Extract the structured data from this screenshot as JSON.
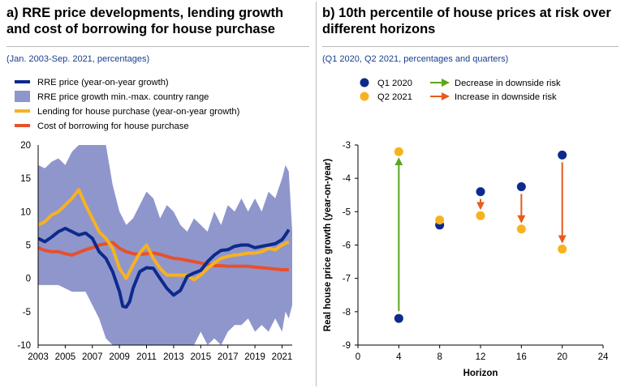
{
  "panel_a": {
    "title_line1": "a) RRE price developments, lending growth",
    "title_line2": "and cost of borrowing for house purchase",
    "subtitle": "(Jan. 2003-Sep. 2021, percentages)"
  },
  "panel_b": {
    "title_line1": "b) 10th percentile of house prices at risk over",
    "title_line2": "different horizons",
    "subtitle": "(Q1 2020, Q2 2021, percentages and quarters)"
  },
  "colors": {
    "navy": "#0d2a8c",
    "range_fill": "#8f96cc",
    "yellow": "#f7b21f",
    "red": "#e8502b",
    "green": "#5aa61e",
    "arrow_red": "#e85b1c",
    "subtitle_blue": "#1a3d8f"
  },
  "chart_data": [
    {
      "type": "line",
      "xlim": [
        2003,
        2021.75
      ],
      "ylim": [
        -10,
        20
      ],
      "xticks": [
        "2003",
        "2005",
        "2007",
        "2009",
        "2011",
        "2013",
        "2015",
        "2017",
        "2019",
        "2021"
      ],
      "yticks": [
        "-10",
        "-5",
        "0",
        "5",
        "10",
        "15",
        "20"
      ],
      "grid": false,
      "legend_position": "top-left",
      "series": [
        {
          "name": "RRE price growth min.-max. country range",
          "kind": "area",
          "x": [
            2003,
            2003.5,
            2004,
            2004.5,
            2005,
            2005.5,
            2006,
            2006.5,
            2007,
            2007.5,
            2008,
            2008.5,
            2009,
            2009.5,
            2010,
            2010.5,
            2011,
            2011.5,
            2012,
            2012.5,
            2013,
            2013.5,
            2014,
            2014.5,
            2015,
            2015.5,
            2016,
            2016.5,
            2017,
            2017.5,
            2018,
            2018.5,
            2019,
            2019.5,
            2020,
            2020.5,
            2021,
            2021.25,
            2021.5,
            2021.75
          ],
          "upper": [
            17,
            16.5,
            17.5,
            18,
            17,
            19,
            20,
            20,
            20,
            20,
            20,
            14,
            10,
            8,
            9,
            11,
            13,
            12,
            9,
            11,
            10,
            8,
            7,
            9,
            8,
            7,
            10,
            8,
            11,
            10,
            12,
            10,
            12,
            10,
            13,
            12,
            15,
            17,
            16,
            7
          ],
          "lower": [
            -1,
            -1,
            -1,
            -1,
            -1.5,
            -2,
            -2,
            -2,
            -4,
            -6,
            -9,
            -10,
            -10,
            -10,
            -10,
            -10,
            -10,
            -10,
            -10,
            -10,
            -10,
            -10,
            -10,
            -10,
            -8,
            -10,
            -9,
            -10,
            -8,
            -7,
            -7,
            -6,
            -8,
            -7,
            -8,
            -6,
            -8,
            -5,
            -6,
            -4
          ]
        },
        {
          "name": "RRE price (year-on-year growth)",
          "x": [
            2003,
            2003.5,
            2004,
            2004.5,
            2005,
            2005.5,
            2006,
            2006.5,
            2007,
            2007.5,
            2008,
            2008.5,
            2009,
            2009.25,
            2009.5,
            2009.75,
            2010,
            2010.5,
            2011,
            2011.5,
            2012,
            2012.5,
            2013,
            2013.5,
            2014,
            2014.5,
            2015,
            2015.5,
            2016,
            2016.5,
            2017,
            2017.5,
            2018,
            2018.5,
            2019,
            2019.5,
            2020,
            2020.5,
            2021,
            2021.25,
            2021.5
          ],
          "values": [
            6,
            5.5,
            6.2,
            7,
            7.5,
            7,
            6.5,
            6.8,
            6,
            4,
            3,
            1,
            -2,
            -4.2,
            -4.3,
            -3.5,
            -1.5,
            1,
            1.6,
            1.5,
            0,
            -1.5,
            -2.5,
            -1.8,
            0.3,
            0.8,
            1.2,
            2.5,
            3.5,
            4.2,
            4.3,
            4.8,
            5,
            5,
            4.6,
            4.8,
            5,
            5.2,
            5.8,
            6.5,
            7.3
          ]
        },
        {
          "name": "Lending for house purchase (year-on-year growth)",
          "x": [
            2003,
            2003.5,
            2004,
            2004.5,
            2005,
            2005.5,
            2006,
            2006.5,
            2007,
            2007.5,
            2008,
            2008.5,
            2009,
            2009.5,
            2010,
            2010.5,
            2011,
            2011.5,
            2012,
            2012.5,
            2013,
            2013.5,
            2014,
            2014.5,
            2015,
            2015.5,
            2016,
            2016.5,
            2017,
            2017.5,
            2018,
            2018.5,
            2019,
            2019.5,
            2020,
            2020.5,
            2021,
            2021.5
          ],
          "values": [
            8,
            8.5,
            9.5,
            10,
            11,
            12,
            13.3,
            11,
            9,
            7,
            6,
            4.5,
            1.5,
            0,
            2,
            3.8,
            5,
            3,
            1.5,
            0.5,
            0.5,
            0.5,
            0.5,
            -0.2,
            0.5,
            1.5,
            2.3,
            3,
            3.3,
            3.5,
            3.6,
            3.8,
            3.8,
            4,
            4.5,
            4.3,
            5,
            5.5
          ]
        },
        {
          "name": "Cost of borrowing for house purchase",
          "x": [
            2003,
            2003.5,
            2004,
            2004.5,
            2005,
            2005.5,
            2006,
            2006.5,
            2007,
            2007.5,
            2008,
            2008.5,
            2009,
            2009.5,
            2010,
            2010.5,
            2011,
            2011.5,
            2012,
            2012.5,
            2013,
            2013.5,
            2014,
            2014.5,
            2015,
            2015.5,
            2016,
            2016.5,
            2017,
            2017.5,
            2018,
            2018.5,
            2019,
            2019.5,
            2020,
            2020.5,
            2021,
            2021.5
          ],
          "values": [
            4.6,
            4.2,
            4,
            4,
            3.7,
            3.5,
            3.9,
            4.3,
            4.6,
            5,
            5.2,
            5.4,
            4.5,
            4,
            3.7,
            3.6,
            3.7,
            3.8,
            3.6,
            3.3,
            3.0,
            2.9,
            2.7,
            2.5,
            2.3,
            2.1,
            1.9,
            1.9,
            1.8,
            1.8,
            1.8,
            1.8,
            1.7,
            1.6,
            1.5,
            1.4,
            1.3,
            1.3
          ]
        }
      ]
    },
    {
      "type": "scatter",
      "xlabel": "Horizon",
      "ylabel": "Real house price growth (year-on-year)",
      "xlim": [
        0,
        24
      ],
      "ylim": [
        -9,
        -3
      ],
      "xticks": [
        "0",
        "4",
        "8",
        "12",
        "16",
        "20",
        "24"
      ],
      "yticks": [
        "-9",
        "-8",
        "-7",
        "-6",
        "-5",
        "-4",
        "-3"
      ],
      "grid": false,
      "legend_position": "top",
      "legend": [
        "Q1 2020",
        "Q2 2021",
        "Decrease in downside risk",
        "Increase in downside risk"
      ],
      "series": [
        {
          "name": "Q1 2020",
          "x": [
            4,
            8,
            12,
            16,
            20
          ],
          "values": [
            -8.2,
            -5.4,
            -4.4,
            -4.25,
            -3.3
          ]
        },
        {
          "name": "Q2 2021",
          "x": [
            4,
            8,
            12,
            16,
            20
          ],
          "values": [
            -3.2,
            -5.25,
            -5.12,
            -5.52,
            -6.12
          ]
        }
      ],
      "arrows": [
        {
          "x": 4,
          "from": -8.2,
          "to": -3.2,
          "type": "Decrease in downside risk"
        },
        {
          "x": 12,
          "from": -4.4,
          "to": -5.12,
          "type": "Increase in downside risk"
        },
        {
          "x": 16,
          "from": -4.25,
          "to": -5.52,
          "type": "Increase in downside risk"
        },
        {
          "x": 20,
          "from": -3.3,
          "to": -6.12,
          "type": "Increase in downside risk"
        }
      ]
    }
  ]
}
